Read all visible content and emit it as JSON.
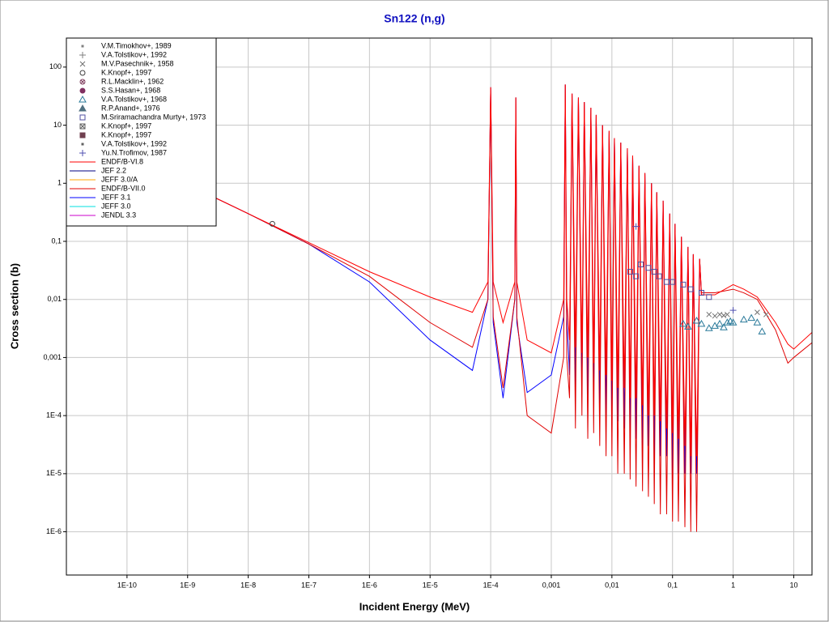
{
  "chart_data": {
    "type": "line",
    "title": "Sn122 (n,g)",
    "xlabel": "Incident Energy (MeV)",
    "ylabel": "Cross section (b)",
    "xscale": "log",
    "yscale": "log",
    "grid": true,
    "legend": "upper left",
    "xlim": [
      1e-11,
      20
    ],
    "ylim": [
      1.8e-07,
      316
    ],
    "xticks": [
      {
        "value": 1e-10,
        "label": "1E-10"
      },
      {
        "value": 1e-09,
        "label": "1E-9"
      },
      {
        "value": 1e-08,
        "label": "1E-8"
      },
      {
        "value": 1e-07,
        "label": "1E-7"
      },
      {
        "value": 1e-06,
        "label": "1E-6"
      },
      {
        "value": 1e-05,
        "label": "1E-5"
      },
      {
        "value": 0.0001,
        "label": "1E-4"
      },
      {
        "value": 0.001,
        "label": "0,001"
      },
      {
        "value": 0.01,
        "label": "0,01"
      },
      {
        "value": 0.1,
        "label": "0,1"
      },
      1,
      10
    ],
    "yticks": [
      100,
      10,
      1,
      {
        "value": 0.1,
        "label": "0,1"
      },
      {
        "value": 0.01,
        "label": "0,01"
      },
      {
        "value": 0.001,
        "label": "0,001"
      },
      {
        "value": 0.0001,
        "label": "1E-4"
      },
      {
        "value": 1e-05,
        "label": "1E-5"
      },
      {
        "value": 1e-06,
        "label": "1E-6"
      }
    ],
    "series": [
      {
        "name": "V.M.Timokhov+, 1989",
        "style": "marker",
        "marker": "dot",
        "color": "#808080",
        "x": [],
        "values": []
      },
      {
        "name": "V.A.Tolstikov+, 1992",
        "style": "marker",
        "marker": "plus",
        "color": "#808080",
        "x": [],
        "values": []
      },
      {
        "name": "M.V.Pasechnik+, 1958",
        "style": "marker",
        "marker": "x",
        "color": "#707070",
        "x": [
          0.4,
          0.5,
          0.6,
          0.7,
          0.8,
          2.5,
          3.5
        ],
        "values": [
          0.0055,
          0.0052,
          0.0055,
          0.0053,
          0.0055,
          0.006,
          0.0055
        ]
      },
      {
        "name": "K.Knopf+, 1997",
        "style": "marker",
        "marker": "circle",
        "color": "#404040",
        "x": [
          2.5e-08
        ],
        "values": [
          0.2
        ]
      },
      {
        "name": "R.L.Macklin+, 1962",
        "style": "marker",
        "marker": "circle-x",
        "color": "#804060",
        "x": [],
        "values": []
      },
      {
        "name": "S.S.Hasan+, 1968",
        "style": "marker",
        "marker": "disc",
        "color": "#803060",
        "x": [],
        "values": []
      },
      {
        "name": "V.A.Tolstikov+, 1968",
        "style": "marker",
        "marker": "triangle",
        "color": "#2a7a9a",
        "x": [
          0.15,
          0.18,
          0.25,
          0.3,
          0.4,
          0.5,
          0.6,
          0.7,
          0.8,
          0.9,
          1,
          1.5,
          2,
          2.5,
          3
        ],
        "values": [
          0.0038,
          0.0034,
          0.0043,
          0.0038,
          0.0032,
          0.0035,
          0.0038,
          0.0033,
          0.004,
          0.0042,
          0.004,
          0.0045,
          0.0048,
          0.004,
          0.0028
        ]
      },
      {
        "name": "R.P.Anand+, 1976",
        "style": "marker",
        "marker": "triangle-filled",
        "color": "#507080",
        "x": [],
        "values": []
      },
      {
        "name": "M.Sriramachandra Murty+, 1973",
        "style": "marker",
        "marker": "square",
        "color": "#5050a0",
        "x": [
          0.02,
          0.025,
          0.03,
          0.04,
          0.05,
          0.06,
          0.08,
          0.1,
          0.15,
          0.2,
          0.3,
          0.4
        ],
        "values": [
          0.03,
          0.025,
          0.04,
          0.035,
          0.03,
          0.025,
          0.02,
          0.02,
          0.018,
          0.015,
          0.013,
          0.011
        ]
      },
      {
        "name": "K.Knopf+, 1997",
        "style": "marker",
        "marker": "square-x",
        "color": "#606060",
        "x": [],
        "values": []
      },
      {
        "name": "K.Knopf+, 1997",
        "style": "marker",
        "marker": "square-filled",
        "color": "#704050",
        "x": [],
        "values": []
      },
      {
        "name": "V.A.Tolstikov+, 1992",
        "style": "marker",
        "marker": "dot",
        "color": "#606060",
        "x": [],
        "values": []
      },
      {
        "name": "Yu.N.Trofimov, 1987",
        "style": "marker",
        "marker": "plus",
        "color": "#5050b0",
        "x": [
          0.025,
          1
        ],
        "values": [
          0.18,
          0.0065
        ]
      },
      {
        "name": "ENDF/B-VI.8",
        "style": "line",
        "color": "#ff0000",
        "x": [
          1e-11,
          1e-10,
          1e-09,
          1e-08,
          1e-07,
          1e-06,
          1e-05,
          5e-05,
          9e-05,
          0.0001,
          0.00011,
          0.00016,
          0.00025,
          0.00026,
          0.00027,
          0.0004,
          0.001,
          0.0016,
          0.0017,
          0.0018,
          0.002,
          0.0022,
          0.0025,
          0.0028,
          0.0032,
          0.0035,
          0.004,
          0.0045,
          0.005,
          0.0055,
          0.0063,
          0.007,
          0.008,
          0.009,
          0.01,
          0.011,
          0.0125,
          0.014,
          0.016,
          0.018,
          0.02,
          0.022,
          0.025,
          0.028,
          0.032,
          0.035,
          0.04,
          0.045,
          0.05,
          0.055,
          0.063,
          0.07,
          0.08,
          0.09,
          0.1,
          0.11,
          0.125,
          0.14,
          0.16,
          0.18,
          0.2,
          0.22,
          0.25,
          0.28,
          0.3,
          0.5,
          1,
          1.5,
          2.5,
          5,
          8,
          10,
          20
        ],
        "values": [
          9.5,
          3,
          0.95,
          0.3,
          0.095,
          0.03,
          0.011,
          0.006,
          0.02,
          45,
          0.02,
          0.004,
          0.02,
          30,
          0.02,
          0.002,
          0.0012,
          0.01,
          50,
          0.01,
          0.002,
          35,
          0.0015,
          30,
          0.0012,
          25,
          0.001,
          20,
          0.0008,
          15,
          0.0006,
          10,
          0.0005,
          8,
          0.0004,
          6,
          0.0003,
          5,
          0.0003,
          4,
          0.0002,
          3,
          0.0002,
          2,
          0.00015,
          1.5,
          0.0001,
          1,
          0.0001,
          0.7,
          8e-05,
          0.5,
          6e-05,
          0.3,
          5e-05,
          0.2,
          4e-05,
          0.12,
          3e-05,
          0.08,
          2e-05,
          0.06,
          2e-05,
          0.05,
          0.012,
          0.012,
          0.018,
          0.015,
          0.011,
          0.004,
          0.0017,
          0.0014,
          0.0027
        ]
      },
      {
        "name": "JEF 2.2",
        "style": "line",
        "color": "#000080",
        "x": [],
        "values": []
      },
      {
        "name": "JEFF 3.0/A",
        "style": "line",
        "color": "#ffa500",
        "x": [],
        "values": []
      },
      {
        "name": "ENDF/B-VII.0",
        "style": "line",
        "color": "#e00000",
        "x": [
          1e-11,
          1e-10,
          1e-09,
          1e-08,
          1e-07,
          1e-06,
          1e-05,
          5e-05,
          9e-05,
          0.0001,
          0.00011,
          0.00016,
          0.00025,
          0.00026,
          0.00027,
          0.0004,
          0.001,
          0.0016,
          0.0017,
          0.0018,
          0.002,
          0.0022,
          0.0025,
          0.0028,
          0.0032,
          0.0035,
          0.004,
          0.0045,
          0.005,
          0.0055,
          0.0063,
          0.007,
          0.008,
          0.009,
          0.01,
          0.011,
          0.0125,
          0.014,
          0.016,
          0.018,
          0.02,
          0.022,
          0.025,
          0.028,
          0.032,
          0.035,
          0.04,
          0.045,
          0.05,
          0.055,
          0.063,
          0.07,
          0.08,
          0.09,
          0.1,
          0.11,
          0.125,
          0.14,
          0.16,
          0.18,
          0.2,
          0.22,
          0.25,
          0.28,
          0.3,
          0.5,
          1,
          1.5,
          2.5,
          5,
          8,
          10,
          20
        ],
        "values": [
          9.5,
          3,
          0.95,
          0.3,
          0.09,
          0.025,
          0.004,
          0.0015,
          0.01,
          45,
          0.005,
          0.0003,
          0.01,
          30,
          0.005,
          0.0001,
          5e-05,
          0.001,
          50,
          0.001,
          0.0002,
          35,
          6e-05,
          30,
          0.0001,
          25,
          4e-05,
          20,
          5e-05,
          15,
          3e-05,
          10,
          2e-05,
          8,
          2e-05,
          6,
          1e-05,
          5,
          1e-05,
          4,
          8e-06,
          3,
          6e-06,
          2,
          5e-06,
          1.5,
          4e-06,
          1,
          3e-06,
          0.7,
          2e-06,
          0.5,
          2e-06,
          0.3,
          1.5e-06,
          0.2,
          1.5e-06,
          0.12,
          1.2e-06,
          0.08,
          1e-06,
          0.06,
          1e-06,
          0.05,
          0.013,
          0.013,
          0.015,
          0.013,
          0.01,
          0.003,
          0.0008,
          0.001,
          0.0018
        ]
      },
      {
        "name": "JEFF 3.1",
        "style": "line",
        "color": "#0000ff",
        "x": [
          1e-11,
          1e-10,
          1e-09,
          1e-08,
          1e-07,
          1e-06,
          1e-05,
          5e-05,
          9e-05,
          0.0001,
          0.00011,
          0.00016,
          0.00025,
          0.00026,
          0.00027,
          0.0004,
          0.001,
          0.0016,
          0.0017,
          0.0018,
          0.002,
          0.0022,
          0.0025,
          0.0028,
          0.0032,
          0.0035,
          0.004,
          0.0045,
          0.005,
          0.0055,
          0.0063,
          0.007,
          0.008,
          0.009,
          0.01,
          0.011,
          0.0125,
          0.014,
          0.016,
          0.018,
          0.02,
          0.022,
          0.025,
          0.028,
          0.032,
          0.035,
          0.04,
          0.045,
          0.05,
          0.055,
          0.063,
          0.07,
          0.08,
          0.09,
          0.1,
          0.11,
          0.125,
          0.14,
          0.16,
          0.18,
          0.2,
          0.22,
          0.25,
          0.28,
          0.3
        ],
        "values": [
          9.5,
          3,
          0.95,
          0.3,
          0.09,
          0.02,
          0.002,
          0.0006,
          0.01,
          45,
          0.004,
          0.0002,
          0.01,
          30,
          0.004,
          0.00025,
          0.0005,
          0.005,
          50,
          0.005,
          0.0005,
          35,
          0.0003,
          30,
          0.0003,
          25,
          0.0002,
          20,
          0.0002,
          15,
          0.00015,
          10,
          0.0001,
          8,
          0.0001,
          6,
          8e-05,
          5,
          6e-05,
          4,
          5e-05,
          3,
          4e-05,
          2,
          3e-05,
          1.5,
          3e-05,
          1,
          2e-05,
          0.7,
          2e-05,
          0.5,
          2e-05,
          0.3,
          1e-05,
          0.2,
          1e-05,
          0.12,
          1e-05,
          0.08,
          1e-05,
          0.06,
          1e-05,
          0.05,
          0.012
        ]
      },
      {
        "name": "JEFF 3.0",
        "style": "line",
        "color": "#00e0e0",
        "x": [],
        "values": []
      },
      {
        "name": "JENDL 3.3",
        "style": "line",
        "color": "#cc00cc",
        "x": [],
        "values": []
      }
    ]
  }
}
